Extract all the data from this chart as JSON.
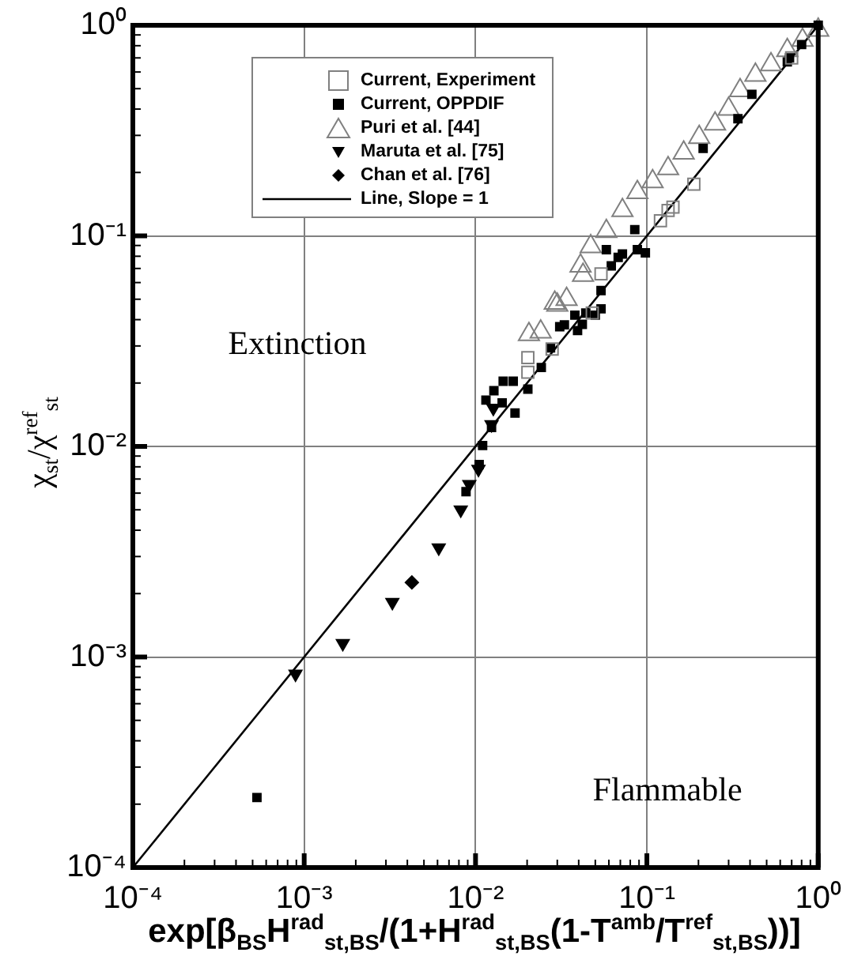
{
  "chart_data": {
    "type": "scatter",
    "xlabel": "exp[β$_{BS}$H$^{rad}$$_{st,BS}$/(1+H$^{rad}$$_{st,BS}$(1-T$^{amb}$/T$^{ref}$$_{st,BS}$))]",
    "ylabel": "χ$_{st}$/χ$^{ref}$$_{st}$",
    "log": "xy",
    "grid": true,
    "legend": "top left",
    "xlim": [
      0.0001,
      1
    ],
    "ylim": [
      0.0001,
      1
    ],
    "xticks": [
      {
        "value": 0.0001,
        "label": "10⁻⁴"
      },
      {
        "value": 0.0002,
        "label": null
      },
      {
        "value": 0.0003,
        "label": null
      },
      {
        "value": 0.0004,
        "label": null
      },
      {
        "value": 0.0005,
        "label": null
      },
      {
        "value": 0.0006,
        "label": null
      },
      {
        "value": 0.0007,
        "label": null
      },
      {
        "value": 0.0008,
        "label": null
      },
      {
        "value": 0.0009,
        "label": null
      },
      {
        "value": 0.001,
        "label": "10⁻³"
      },
      {
        "value": 0.002,
        "label": null
      },
      {
        "value": 0.003,
        "label": null
      },
      {
        "value": 0.004,
        "label": null
      },
      {
        "value": 0.005,
        "label": null
      },
      {
        "value": 0.006,
        "label": null
      },
      {
        "value": 0.007,
        "label": null
      },
      {
        "value": 0.008,
        "label": null
      },
      {
        "value": 0.009,
        "label": null
      },
      {
        "value": 0.01,
        "label": "10⁻²"
      },
      {
        "value": 0.02,
        "label": null
      },
      {
        "value": 0.03,
        "label": null
      },
      {
        "value": 0.04,
        "label": null
      },
      {
        "value": 0.05,
        "label": null
      },
      {
        "value": 0.06,
        "label": null
      },
      {
        "value": 0.07,
        "label": null
      },
      {
        "value": 0.08,
        "label": null
      },
      {
        "value": 0.09,
        "label": null
      },
      {
        "value": 0.1,
        "label": "10⁻¹"
      },
      {
        "value": 0.2,
        "label": null
      },
      {
        "value": 0.3,
        "label": null
      },
      {
        "value": 0.4,
        "label": null
      },
      {
        "value": 0.5,
        "label": null
      },
      {
        "value": 0.6,
        "label": null
      },
      {
        "value": 0.7,
        "label": null
      },
      {
        "value": 0.8,
        "label": null
      },
      {
        "value": 0.9,
        "label": null
      },
      {
        "value": 1,
        "label": "10⁰"
      }
    ],
    "yticks": [
      {
        "value": 0.0001,
        "label": "10⁻⁴"
      },
      {
        "value": 0.0002,
        "label": null
      },
      {
        "value": 0.0003,
        "label": null
      },
      {
        "value": 0.0004,
        "label": null
      },
      {
        "value": 0.0005,
        "label": null
      },
      {
        "value": 0.0006,
        "label": null
      },
      {
        "value": 0.0007,
        "label": null
      },
      {
        "value": 0.0008,
        "label": null
      },
      {
        "value": 0.0009,
        "label": null
      },
      {
        "value": 0.001,
        "label": "10⁻³"
      },
      {
        "value": 0.002,
        "label": null
      },
      {
        "value": 0.003,
        "label": null
      },
      {
        "value": 0.004,
        "label": null
      },
      {
        "value": 0.005,
        "label": null
      },
      {
        "value": 0.006,
        "label": null
      },
      {
        "value": 0.007,
        "label": null
      },
      {
        "value": 0.008,
        "label": null
      },
      {
        "value": 0.009,
        "label": null
      },
      {
        "value": 0.01,
        "label": "10⁻²"
      },
      {
        "value": 0.02,
        "label": null
      },
      {
        "value": 0.03,
        "label": null
      },
      {
        "value": 0.04,
        "label": null
      },
      {
        "value": 0.05,
        "label": null
      },
      {
        "value": 0.06,
        "label": null
      },
      {
        "value": 0.07,
        "label": null
      },
      {
        "value": 0.08,
        "label": null
      },
      {
        "value": 0.09,
        "label": null
      },
      {
        "value": 0.1,
        "label": "10⁻¹"
      },
      {
        "value": 0.2,
        "label": null
      },
      {
        "value": 0.3,
        "label": null
      },
      {
        "value": 0.4,
        "label": null
      },
      {
        "value": 0.5,
        "label": null
      },
      {
        "value": 0.6,
        "label": null
      },
      {
        "value": 0.7,
        "label": null
      },
      {
        "value": 0.8,
        "label": null
      },
      {
        "value": 0.9,
        "label": null
      },
      {
        "value": 1,
        "label": "10⁰"
      }
    ],
    "annotations": [
      "Extinction",
      "Flammable"
    ],
    "series": [
      {
        "name": "Current, Experiment",
        "color": "#808080",
        "marker": "square",
        "x": [
          0.0202,
          0.0202,
          0.028,
          0.048,
          0.054,
          0.12,
          0.133,
          0.142,
          0.188,
          0.7
        ],
        "values": [
          0.0264,
          0.0225,
          0.029,
          0.043,
          0.066,
          0.118,
          0.132,
          0.137,
          0.176,
          0.7
        ]
      },
      {
        "name": "Current, OPPDIF",
        "color": "#000000",
        "marker": "square",
        "x": [
          0.00053,
          0.0088,
          0.0105,
          0.011,
          0.0124,
          0.017,
          0.0115,
          0.0143,
          0.0128,
          0.0145,
          0.0166,
          0.0202,
          0.0242,
          0.0274,
          0.031,
          0.033,
          0.038,
          0.044,
          0.05,
          0.042,
          0.054,
          0.0394,
          0.054,
          0.058,
          0.072,
          0.088,
          0.098,
          0.068,
          0.062,
          0.085,
          0.213,
          0.34,
          0.41,
          0.66,
          0.68,
          0.8,
          1.0
        ],
        "values": [
          0.000215,
          0.0061,
          0.0082,
          0.0101,
          0.0123,
          0.0144,
          0.0166,
          0.0161,
          0.0184,
          0.0204,
          0.0204,
          0.0187,
          0.0237,
          0.0294,
          0.037,
          0.0378,
          0.042,
          0.043,
          0.042,
          0.038,
          0.045,
          0.0355,
          0.055,
          0.086,
          0.082,
          0.086,
          0.083,
          0.079,
          0.072,
          0.107,
          0.26,
          0.36,
          0.47,
          0.67,
          0.7,
          0.81,
          1.0
        ]
      },
      {
        "name": "Puri et al. [44]",
        "color": "#808080",
        "marker": "triangle",
        "x": [
          0.0205,
          0.024,
          0.029,
          0.034,
          0.0424,
          0.03,
          0.041,
          0.047,
          0.058,
          0.072,
          0.088,
          0.108,
          0.133,
          0.164,
          0.202,
          0.25,
          0.3,
          0.35,
          0.43,
          0.53,
          0.66,
          0.81,
          1.0
        ],
        "values": [
          0.034,
          0.035,
          0.048,
          0.05,
          0.065,
          0.047,
          0.072,
          0.089,
          0.105,
          0.132,
          0.161,
          0.181,
          0.209,
          0.248,
          0.294,
          0.34,
          0.4,
          0.49,
          0.58,
          0.65,
          0.76,
          0.85,
          0.95
        ]
      },
      {
        "name": "Maruta et al. [75]",
        "color": "#000000",
        "marker": "triangle-down",
        "x": [
          0.00089,
          0.00168,
          0.00327,
          0.0061,
          0.0082,
          0.0092,
          0.0104,
          0.0124,
          0.0127
        ],
        "values": [
          0.00083,
          0.00116,
          0.00182,
          0.0033,
          0.005,
          0.0066,
          0.0078,
          0.0127,
          0.0152
        ]
      },
      {
        "name": "Chan et al. [76]",
        "color": "#000000",
        "marker": "diamond",
        "x": [
          0.00425
        ],
        "values": [
          0.00226
        ]
      },
      {
        "name": "Line, Slope = 1",
        "type": "line",
        "color": "#000000",
        "marker": "none",
        "line_style": "solid",
        "x": [
          0.0001,
          1
        ],
        "values": [
          0.0001,
          1
        ]
      }
    ]
  }
}
